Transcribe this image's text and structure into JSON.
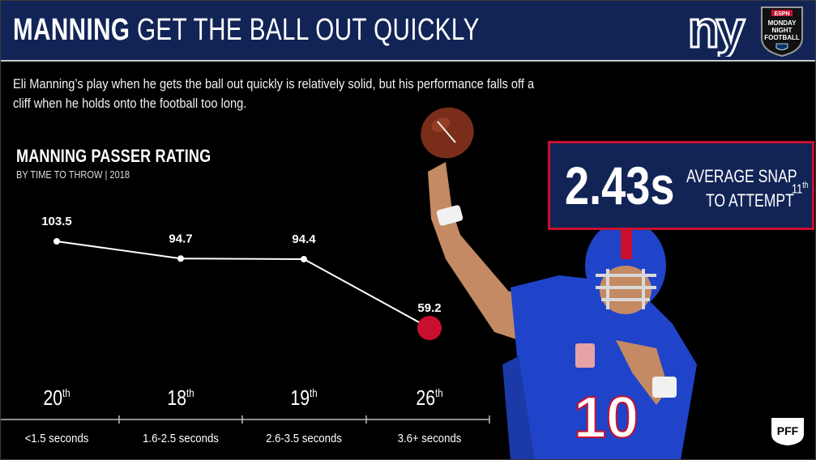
{
  "header": {
    "title_bold": "MANNING",
    "title_rest": "GET THE BALL OUT QUICKLY",
    "team_logo_text": "ny",
    "broadcast_logo": {
      "top": "ESPN",
      "lines": [
        "MONDAY",
        "NIGHT",
        "FOOTBALL"
      ]
    }
  },
  "intro": "Eli Manning’s play when he gets the ball out quickly is relatively solid, but his performance falls off a cliff when he holds onto the football too long.",
  "stat": {
    "value": "2.43s",
    "label_line1": "AVERAGE SNAP",
    "label_line2": "TO ATTEMPT",
    "rank_num": "11",
    "rank_suffix": "th"
  },
  "colors": {
    "navy": "#122456",
    "red": "#c8102e",
    "line": "#ffffff",
    "background": "#000000"
  },
  "chart_data": {
    "type": "line",
    "title": "MANNING PASSER RATING",
    "subtitle": "BY TIME TO THROW | 2018",
    "categories": [
      "<1.5 seconds",
      "1.6-2.5 seconds",
      "2.6-3.5 seconds",
      "3.6+ seconds"
    ],
    "values": [
      103.5,
      94.7,
      94.4,
      59.2
    ],
    "value_labels": [
      "103.5",
      "94.7",
      "94.4",
      "59.2"
    ],
    "ranks": [
      {
        "num": "20",
        "suffix": "th"
      },
      {
        "num": "18",
        "suffix": "th"
      },
      {
        "num": "19",
        "suffix": "th"
      },
      {
        "num": "26",
        "suffix": "th"
      }
    ],
    "highlight_index": 3,
    "ylim": [
      40,
      110
    ],
    "grid": false
  },
  "watermark": "PFF",
  "player": {
    "jersey_number": "10"
  }
}
